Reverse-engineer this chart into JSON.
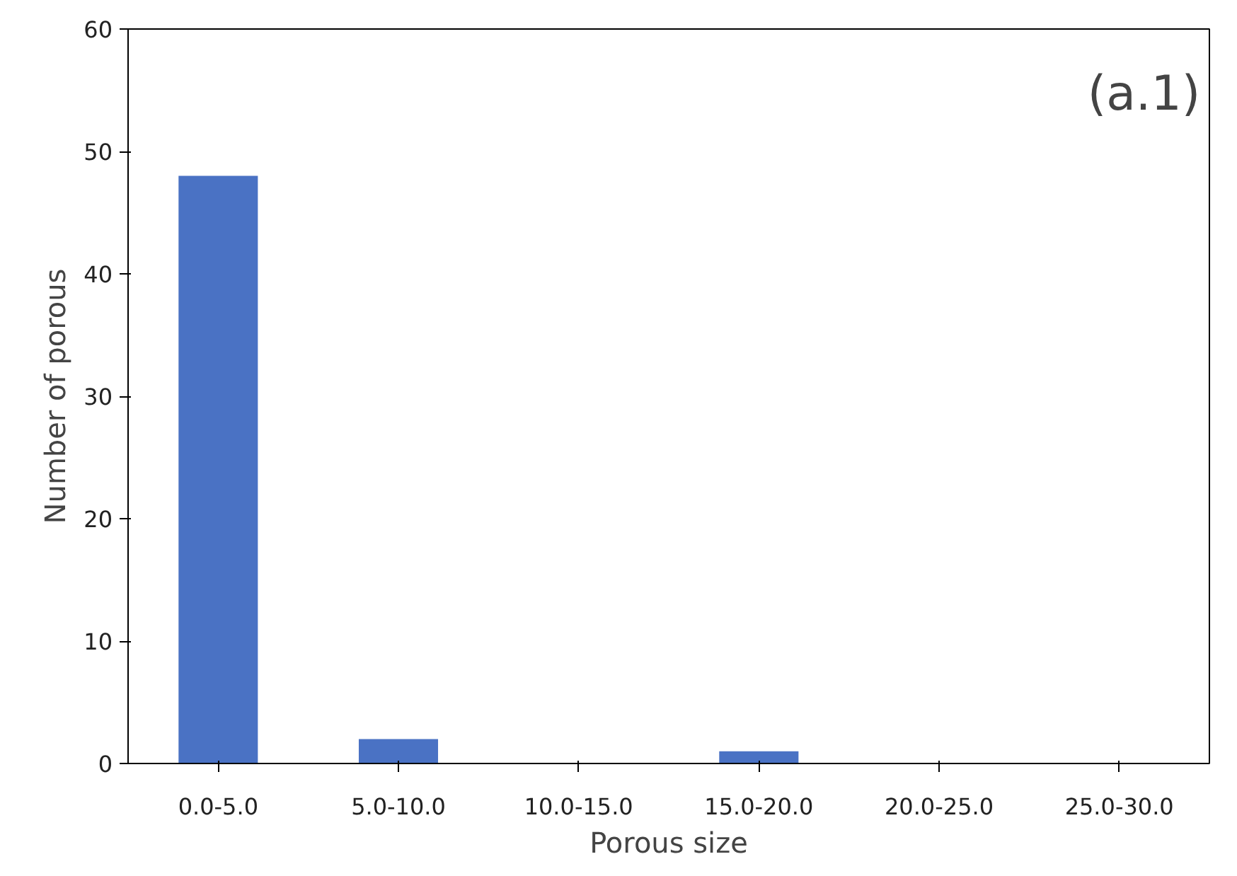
{
  "chart_data": {
    "type": "bar",
    "xlabel": "Porous size",
    "ylabel": "Number of porous",
    "categories": [
      "0.0-5.0",
      "5.0-10.0",
      "10.0-15.0",
      "15.0-20.0",
      "20.0-25.0",
      "25.0-30.0"
    ],
    "values": [
      48,
      2,
      0,
      1,
      0,
      0
    ],
    "color": "#4a72c4",
    "ylim": [
      0,
      60
    ],
    "yticks": [
      0,
      10,
      20,
      30,
      40,
      50,
      60
    ],
    "grid": false,
    "annotations": [
      "(a.1)"
    ]
  }
}
